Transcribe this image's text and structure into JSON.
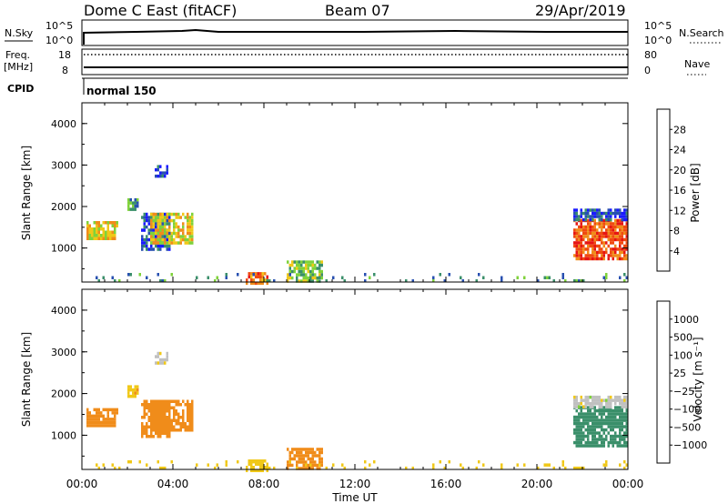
{
  "header": {
    "station": "Dome C East (fitACF)",
    "beam": "Beam 07",
    "date": "29/Apr/2019"
  },
  "panels": {
    "nsky": {
      "left_label": "N.Sky",
      "left_ticks": [
        "10^5",
        "10^0"
      ],
      "right_label": "N.Search",
      "right_ticks": [
        "10^5",
        "10^0"
      ]
    },
    "freq": {
      "left_label_1": "Freq.",
      "left_label_2": "[MHz]",
      "left_ticks": [
        "18",
        "8"
      ],
      "right_label": "Nave",
      "right_ticks": [
        "80",
        "0"
      ]
    },
    "cpid": {
      "label": "CPID",
      "mode": "normal 150"
    }
  },
  "chart_data": [
    {
      "type": "heatmap",
      "title": "",
      "ylabel": "Slant Range [km]",
      "ylim": [
        180,
        4500
      ],
      "yticks": [
        "1000",
        "2000",
        "3000",
        "4000"
      ],
      "xlabel": "",
      "x_range_hours": [
        0,
        24
      ],
      "colorbar": {
        "label": "Power [dB]",
        "ticks": [
          "4",
          "8",
          "12",
          "16",
          "20",
          "24",
          "28"
        ],
        "levels": [
          {
            "min": 0,
            "color": "#1a1aff"
          },
          {
            "min": 4,
            "color": "#2850b0"
          },
          {
            "min": 8,
            "color": "#3a8f6a"
          },
          {
            "min": 12,
            "color": "#7fd23a"
          },
          {
            "min": 16,
            "color": "#f0c818"
          },
          {
            "min": 20,
            "color": "#f08c1a"
          },
          {
            "min": 24,
            "color": "#f04a10"
          },
          {
            "min": 28,
            "color": "#e61414"
          }
        ],
        "range": [
          0,
          32
        ]
      },
      "echo_regions": [
        {
          "t0": 0.2,
          "t1": 1.6,
          "r0": 1250,
          "r1": 1650,
          "value": 18
        },
        {
          "t0": 2.0,
          "t1": 2.5,
          "r0": 1900,
          "r1": 2200,
          "value": 10
        },
        {
          "t0": 2.6,
          "t1": 3.9,
          "r0": 950,
          "r1": 1850,
          "value": 6
        },
        {
          "t0": 3.0,
          "t1": 4.9,
          "r0": 1150,
          "r1": 1850,
          "value": 18
        },
        {
          "t0": 3.2,
          "t1": 3.8,
          "r0": 2700,
          "r1": 3000,
          "value": 5
        },
        {
          "t0": 7.2,
          "t1": 8.2,
          "r0": 180,
          "r1": 420,
          "value": 24
        },
        {
          "t0": 9.0,
          "t1": 10.6,
          "r0": 180,
          "r1": 700,
          "value": 14
        },
        {
          "t0": 21.6,
          "t1": 24.0,
          "r0": 750,
          "r1": 1700,
          "value": 26
        },
        {
          "t0": 21.6,
          "t1": 24.0,
          "r0": 1650,
          "r1": 1950,
          "value": 6
        },
        {
          "t0": 0.0,
          "t1": 24.0,
          "r0": 180,
          "r1": 400,
          "value": 9
        }
      ]
    },
    {
      "type": "heatmap",
      "title": "",
      "ylabel": "Slant Range [km]",
      "ylim": [
        180,
        4500
      ],
      "yticks": [
        "1000",
        "2000",
        "3000",
        "4000"
      ],
      "xlabel": "Time UT",
      "xticks": [
        "00:00",
        "04:00",
        "08:00",
        "12:00",
        "16:00",
        "20:00",
        "00:00"
      ],
      "x_range_hours": [
        0,
        24
      ],
      "colorbar": {
        "label": "Velocity [m s⁻¹]",
        "ticks": [
          "1000",
          "500",
          "100",
          "25",
          "−25",
          "−100",
          "−500",
          "−1000"
        ],
        "levels": [
          {
            "min": 1000,
            "color": "#1a1ae6"
          },
          {
            "min": 500,
            "color": "#2850b0"
          },
          {
            "min": 100,
            "color": "#3a8f6a"
          },
          {
            "min": 25,
            "color": "#7fd23a"
          },
          {
            "min": -25,
            "color": "#c0c0c0"
          },
          {
            "min": -100,
            "color": "#f0c818"
          },
          {
            "min": -500,
            "color": "#f08c1a"
          },
          {
            "min": -1000,
            "color": "#f04a10"
          },
          {
            "min": -9999,
            "color": "#e61414"
          }
        ]
      },
      "echo_regions": [
        {
          "t0": 0.2,
          "t1": 1.6,
          "r0": 1250,
          "r1": 1650,
          "value": -300
        },
        {
          "t0": 2.0,
          "t1": 2.5,
          "r0": 1900,
          "r1": 2200,
          "value": -80
        },
        {
          "t0": 2.6,
          "t1": 3.9,
          "r0": 950,
          "r1": 1850,
          "value": -250
        },
        {
          "t0": 3.0,
          "t1": 4.9,
          "r0": 1150,
          "r1": 1850,
          "value": -200
        },
        {
          "t0": 3.2,
          "t1": 3.8,
          "r0": 2700,
          "r1": 3000,
          "value": 0
        },
        {
          "t0": 7.2,
          "t1": 8.2,
          "r0": 180,
          "r1": 420,
          "value": -60
        },
        {
          "t0": 9.0,
          "t1": 10.6,
          "r0": 180,
          "r1": 700,
          "value": -150
        },
        {
          "t0": 21.6,
          "t1": 24.0,
          "r0": 750,
          "r1": 1700,
          "value": 150
        },
        {
          "t0": 21.6,
          "t1": 24.0,
          "r0": 1650,
          "r1": 1950,
          "value": 0
        },
        {
          "t0": 0.0,
          "t1": 24.0,
          "r0": 180,
          "r1": 400,
          "value": -60
        }
      ]
    }
  ]
}
